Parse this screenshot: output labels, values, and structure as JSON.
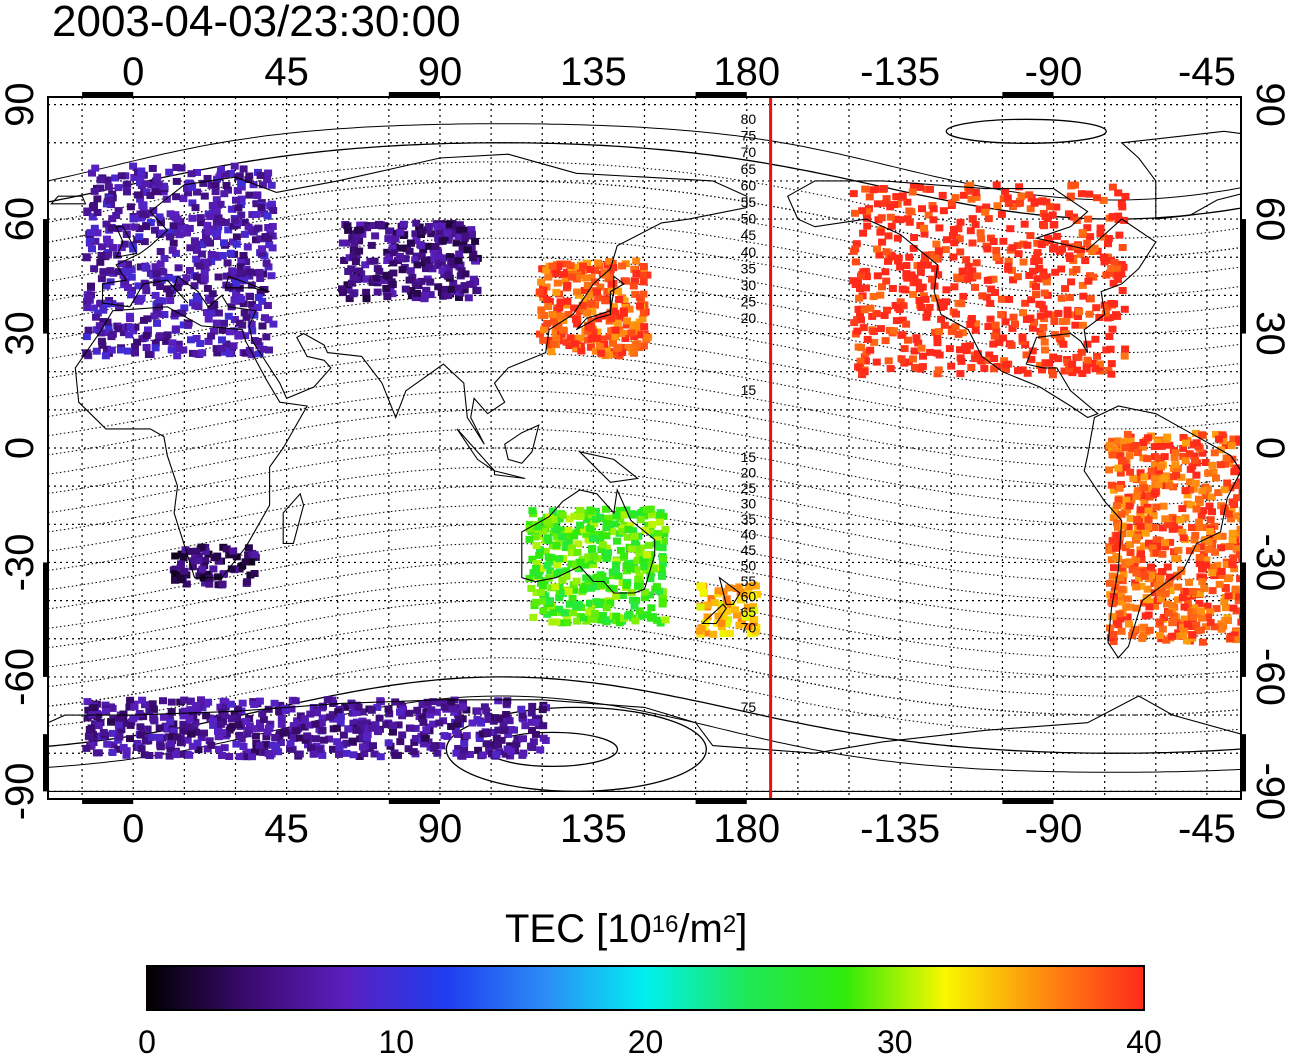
{
  "title": "2003-04-03/23:30:00",
  "colorbar": {
    "label_prefix": "TEC  [10",
    "label_exp1": "16",
    "label_mid": "/m",
    "label_exp2": "2",
    "label_suffix": "]",
    "ticks": [
      "0",
      "10",
      "20",
      "30",
      "40"
    ],
    "min": 0,
    "max": 40,
    "colormap": [
      "#000000",
      "#3a0a6e",
      "#5a1fbf",
      "#1f3df0",
      "#2c8cf6",
      "#00f0f0",
      "#1fe85a",
      "#2fea0a",
      "#f8f800",
      "#ff8a10",
      "#ff2a1a"
    ]
  },
  "axes": {
    "lon_ticks": [
      "0",
      "45",
      "90",
      "135",
      "180",
      "-135",
      "-90",
      "-45"
    ],
    "lat_ticks": [
      "90",
      "60",
      "30",
      "0",
      "-30",
      "-60",
      "-90"
    ],
    "lon_range": [
      -25,
      325
    ],
    "lat_range": [
      -92,
      92
    ]
  },
  "contour_labels": [
    "80",
    "75",
    "70",
    "65",
    "60",
    "55",
    "50",
    "45",
    "40",
    "35",
    "30",
    "25",
    "20",
    "15",
    "15",
    "20",
    "25",
    "30",
    "35",
    "40",
    "45",
    "50",
    "55",
    "60",
    "65",
    "70",
    "75"
  ],
  "terminator_longitude": 187,
  "colors": {
    "terminator": "#e81010"
  },
  "tec_regions": [
    {
      "name": "europe",
      "lon": [
        -15,
        40
      ],
      "lat": [
        25,
        75
      ],
      "tec": 7
    },
    {
      "name": "russia",
      "lon": [
        60,
        100
      ],
      "lat": [
        40,
        60
      ],
      "tec": 5
    },
    {
      "name": "japan",
      "lon": [
        118,
        150
      ],
      "lat": [
        25,
        50
      ],
      "tec": 38
    },
    {
      "name": "north-america",
      "lon": [
        210,
        290
      ],
      "lat": [
        20,
        70
      ],
      "tec": 40
    },
    {
      "name": "south-america",
      "lon": [
        285,
        325
      ],
      "lat": [
        -50,
        5
      ],
      "tec": 38
    },
    {
      "name": "australia",
      "lon": [
        115,
        155
      ],
      "lat": [
        -45,
        -15
      ],
      "tec": 28
    },
    {
      "name": "new-zealand",
      "lon": [
        165,
        182
      ],
      "lat": [
        -48,
        -35
      ],
      "tec": 34
    },
    {
      "name": "africa-south",
      "lon": [
        10,
        35
      ],
      "lat": [
        -35,
        -25
      ],
      "tec": 4
    },
    {
      "name": "antarctic",
      "lon": [
        -15,
        120
      ],
      "lat": [
        -80,
        -65
      ],
      "tec": 6
    }
  ]
}
